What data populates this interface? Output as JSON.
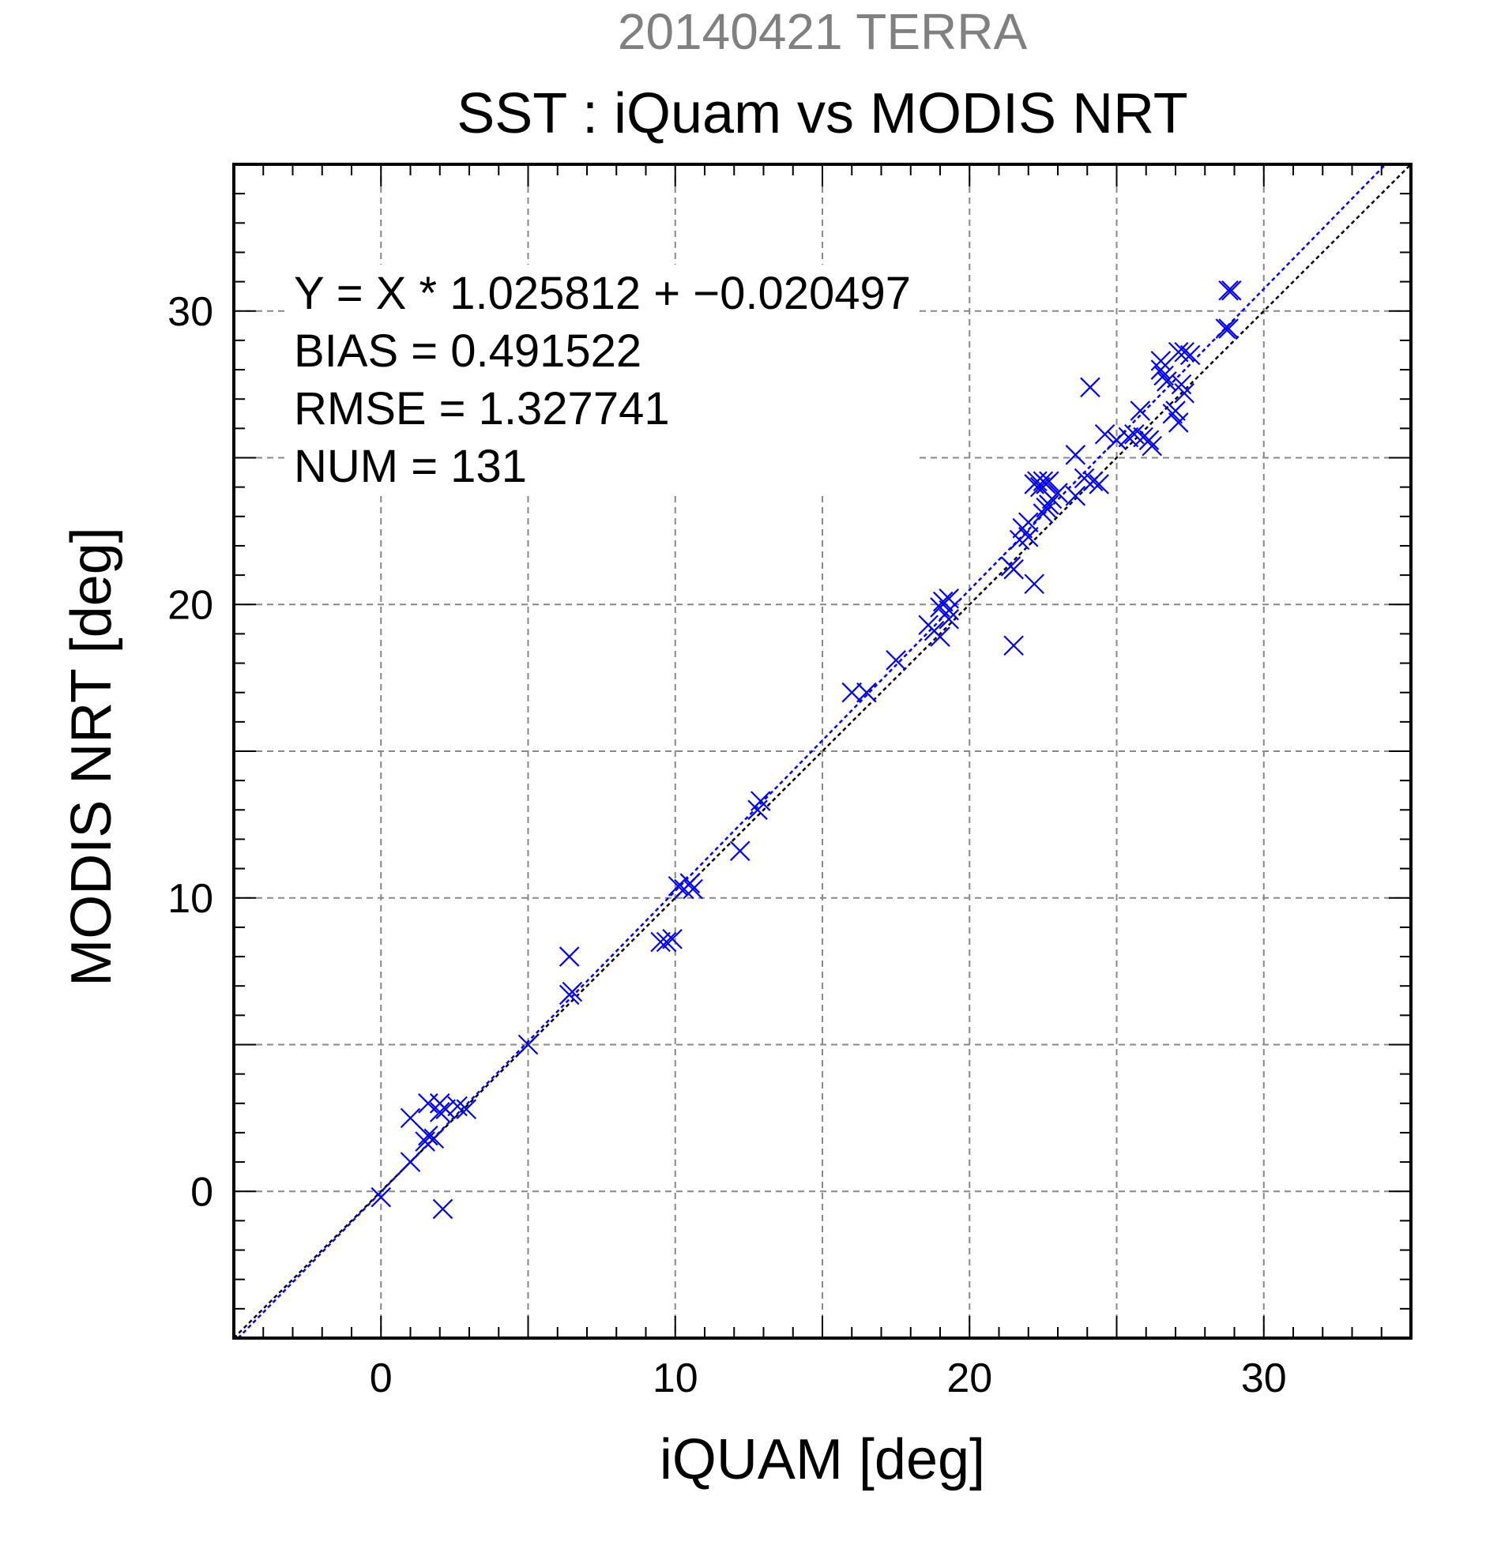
{
  "chart_data": {
    "type": "scatter",
    "supertitle": "20140421 TERRA",
    "title": "SST : iQuam vs MODIS NRT",
    "xlabel": "iQUAM [deg]",
    "ylabel": "MODIS NRT [deg]",
    "xlim": [
      -5,
      35
    ],
    "ylim": [
      -5,
      35
    ],
    "major_ticks": [
      0,
      10,
      20,
      30
    ],
    "tick_labels": [
      "0",
      "10",
      "20",
      "30"
    ],
    "grid": true,
    "grid_values": [
      0,
      5,
      10,
      15,
      20,
      25,
      30
    ],
    "minor_tick_step": 1,
    "marker": "x",
    "marker_color": "#0000ff",
    "identity_line_color": "#000000",
    "fit_line_color": "#0000ff",
    "fit": {
      "slope": 1.025812,
      "intercept": -0.020497
    },
    "stats": [
      "Y = X * 1.025812 + −0.020497",
      "BIAS = 0.491522",
      "RMSE = 1.327741",
      "NUM = 131"
    ],
    "points": [
      [
        0.0,
        -0.2
      ],
      [
        1.0,
        1.0
      ],
      [
        1.0,
        2.5
      ],
      [
        1.5,
        1.7
      ],
      [
        1.6,
        1.9
      ],
      [
        1.6,
        3.0
      ],
      [
        1.8,
        1.8
      ],
      [
        2.0,
        2.7
      ],
      [
        2.0,
        3.0
      ],
      [
        2.2,
        2.8
      ],
      [
        2.6,
        2.9
      ],
      [
        2.9,
        2.8
      ],
      [
        2.1,
        -0.6
      ],
      [
        5.0,
        5.0
      ],
      [
        6.4,
        8.0
      ],
      [
        6.4,
        6.7
      ],
      [
        6.5,
        6.8
      ],
      [
        9.5,
        8.5
      ],
      [
        9.7,
        8.5
      ],
      [
        9.9,
        8.6
      ],
      [
        10.1,
        10.4
      ],
      [
        10.3,
        10.3
      ],
      [
        10.5,
        10.5
      ],
      [
        10.6,
        10.3
      ],
      [
        12.2,
        11.6
      ],
      [
        12.8,
        13.0
      ],
      [
        12.9,
        13.3
      ],
      [
        16.0,
        17.0
      ],
      [
        16.5,
        17.0
      ],
      [
        17.5,
        18.1
      ],
      [
        18.6,
        19.3
      ],
      [
        18.8,
        19.1
      ],
      [
        19.0,
        18.9
      ],
      [
        19.0,
        19.9
      ],
      [
        19.1,
        20.1
      ],
      [
        19.3,
        20.2
      ],
      [
        19.3,
        19.8
      ],
      [
        19.3,
        19.5
      ],
      [
        21.5,
        18.6
      ],
      [
        21.4,
        21.3
      ],
      [
        21.5,
        21.2
      ],
      [
        21.7,
        22.2
      ],
      [
        21.8,
        22.6
      ],
      [
        22.0,
        22.8
      ],
      [
        22.0,
        22.3
      ],
      [
        22.2,
        20.7
      ],
      [
        22.2,
        24.1
      ],
      [
        22.3,
        24.2
      ],
      [
        22.4,
        24.0
      ],
      [
        22.5,
        24.2
      ],
      [
        22.6,
        24.1
      ],
      [
        22.7,
        24.2
      ],
      [
        22.5,
        23.1
      ],
      [
        22.6,
        23.3
      ],
      [
        22.7,
        23.4
      ],
      [
        22.8,
        23.6
      ],
      [
        23.0,
        23.8
      ],
      [
        23.6,
        23.7
      ],
      [
        23.6,
        25.1
      ],
      [
        23.9,
        24.3
      ],
      [
        24.1,
        27.4
      ],
      [
        24.2,
        24.2
      ],
      [
        24.4,
        24.1
      ],
      [
        24.6,
        25.8
      ],
      [
        25.0,
        25.6
      ],
      [
        25.4,
        25.7
      ],
      [
        25.6,
        25.8
      ],
      [
        25.8,
        26.6
      ],
      [
        25.9,
        25.7
      ],
      [
        26.1,
        25.6
      ],
      [
        26.2,
        25.4
      ],
      [
        26.5,
        28.3
      ],
      [
        26.5,
        28.0
      ],
      [
        26.6,
        27.8
      ],
      [
        26.7,
        27.6
      ],
      [
        26.9,
        26.5
      ],
      [
        27.0,
        26.6
      ],
      [
        27.1,
        26.2
      ],
      [
        27.2,
        27.5
      ],
      [
        27.3,
        27.2
      ],
      [
        27.3,
        28.6
      ],
      [
        27.5,
        28.5
      ],
      [
        27.1,
        28.6
      ],
      [
        28.7,
        29.4
      ],
      [
        28.8,
        29.4
      ],
      [
        28.8,
        30.7
      ],
      [
        28.9,
        30.7
      ]
    ]
  }
}
